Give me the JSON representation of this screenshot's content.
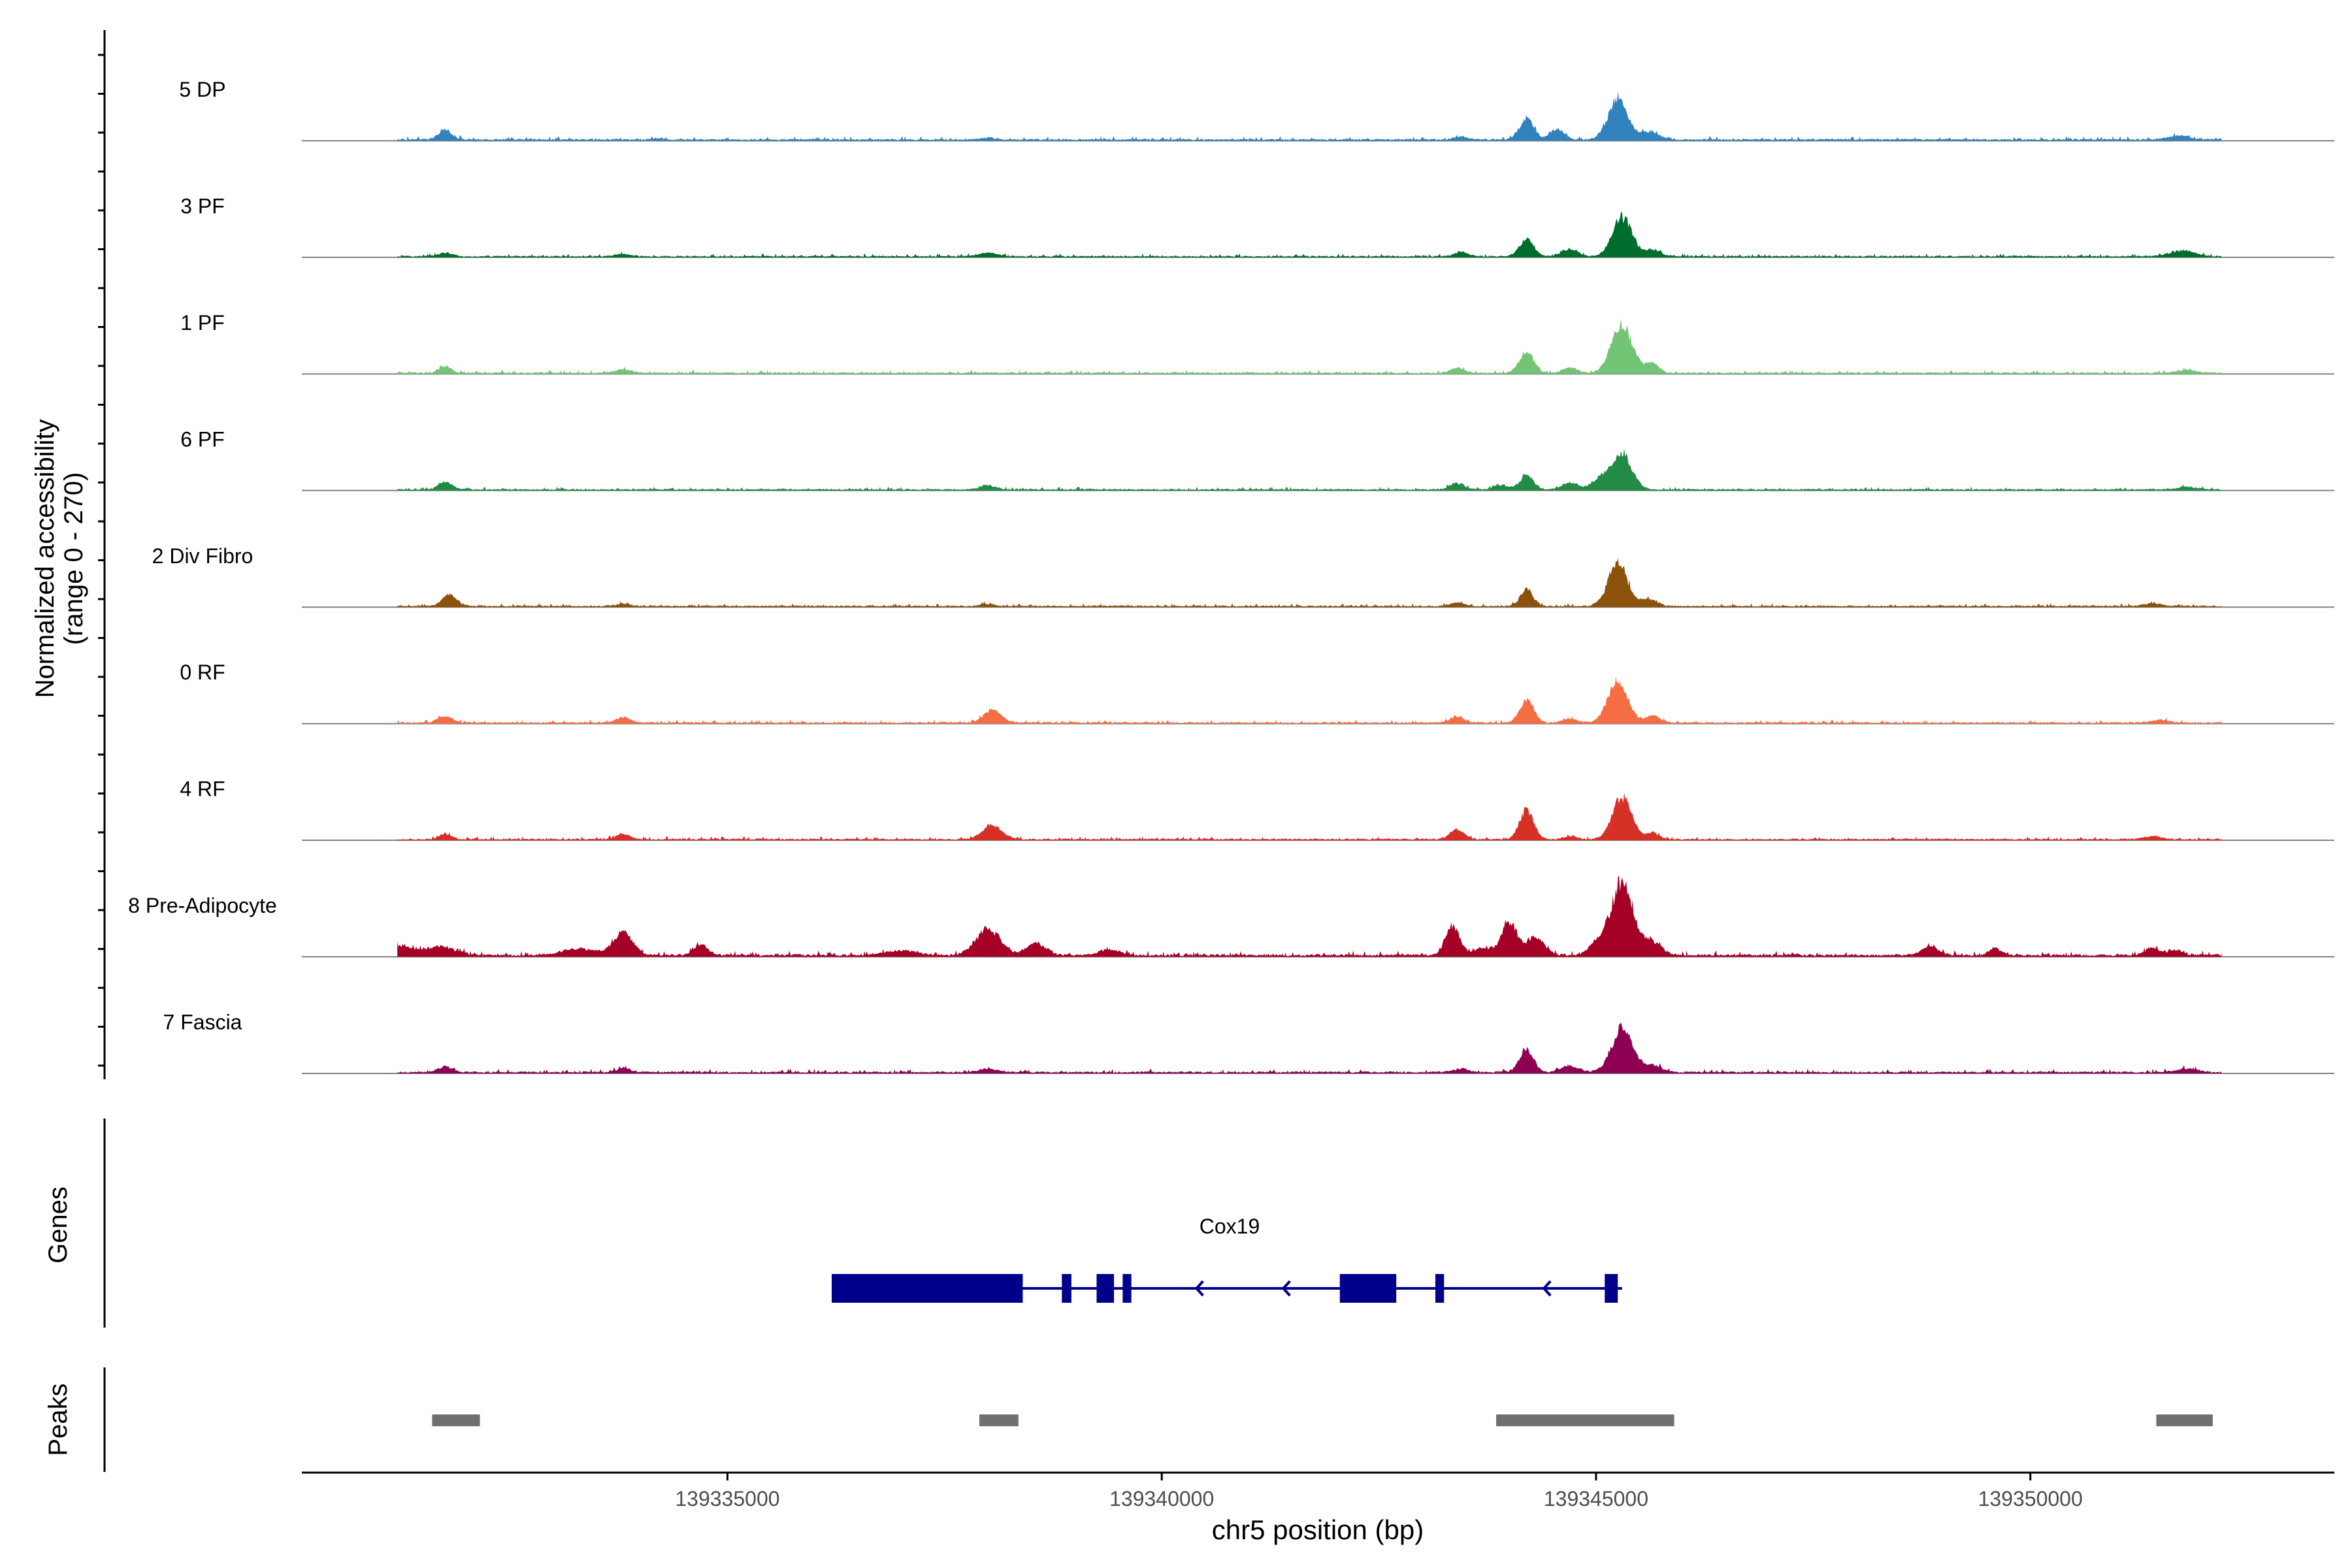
{
  "chart_data": [
    {
      "type": "area",
      "title": "",
      "ylabel_line1": "Normalized accessibility",
      "ylabel_line2": "(range 0 - 270)",
      "ylim": [
        0,
        270
      ],
      "xlabel": "chr5 position (bp)",
      "xlim": [
        139330100,
        139353500
      ],
      "x_ticks": [
        139335000,
        139340000,
        139345000,
        139350000
      ],
      "x_tick_labels": [
        "139335000",
        "139340000",
        "139345000",
        "139350000"
      ],
      "peak_shape_note": "Each track is summarized as a baseline level plus Gaussian-shaped peaks: [center_bp, height (0-270 scale), width_bp]",
      "series": [
        {
          "name": "5 DP",
          "color": "#3182bd",
          "baseline": 6,
          "peaks": [
            [
              139331750,
              24,
              80
            ],
            [
              139334200,
              4,
              60
            ],
            [
              139338000,
              5,
              80
            ],
            [
              139343450,
              8,
              80
            ],
            [
              139344200,
              60,
              80
            ],
            [
              139344550,
              28,
              80
            ],
            [
              139345250,
              110,
              110
            ],
            [
              139345600,
              20,
              120
            ],
            [
              139351700,
              10,
              120
            ]
          ]
        },
        {
          "name": "3 PF",
          "color": "#006d2c",
          "baseline": 5,
          "peaks": [
            [
              139331750,
              10,
              80
            ],
            [
              139333800,
              6,
              80
            ],
            [
              139338000,
              10,
              100
            ],
            [
              139343450,
              12,
              80
            ],
            [
              139344200,
              48,
              80
            ],
            [
              139344700,
              20,
              90
            ],
            [
              139345300,
              108,
              110
            ],
            [
              139345650,
              18,
              90
            ],
            [
              139351750,
              16,
              140
            ]
          ]
        },
        {
          "name": "1 PF",
          "color": "#74c476",
          "baseline": 5,
          "peaks": [
            [
              139331750,
              18,
              70
            ],
            [
              139333800,
              9,
              90
            ],
            [
              139343400,
              14,
              80
            ],
            [
              139344200,
              60,
              80
            ],
            [
              139344700,
              15,
              80
            ],
            [
              139345300,
              130,
              120
            ],
            [
              139345650,
              28,
              70
            ],
            [
              139351800,
              7,
              120
            ]
          ]
        },
        {
          "name": "6 PF",
          "color": "#238b45",
          "baseline": 5,
          "peaks": [
            [
              139331750,
              20,
              80
            ],
            [
              139338000,
              12,
              80
            ],
            [
              139343400,
              18,
              80
            ],
            [
              139343900,
              12,
              80
            ],
            [
              139344200,
              38,
              80
            ],
            [
              139344700,
              18,
              90
            ],
            [
              139345050,
              30,
              100
            ],
            [
              139345300,
              100,
              110
            ],
            [
              139351800,
              7,
              120
            ]
          ]
        },
        {
          "name": "2 Div Fibro",
          "color": "#8c510a",
          "baseline": 5,
          "peaks": [
            [
              139331800,
              32,
              80
            ],
            [
              139333800,
              6,
              80
            ],
            [
              139338000,
              6,
              80
            ],
            [
              139343400,
              10,
              80
            ],
            [
              139344200,
              48,
              70
            ],
            [
              139345250,
              118,
              110
            ],
            [
              139345600,
              18,
              100
            ],
            [
              139351400,
              8,
              100
            ]
          ]
        },
        {
          "name": "0 RF",
          "color": "#f46d43",
          "baseline": 5,
          "peaks": [
            [
              139331750,
              18,
              80
            ],
            [
              139333800,
              14,
              80
            ],
            [
              139338050,
              36,
              100
            ],
            [
              139343400,
              16,
              80
            ],
            [
              139344200,
              62,
              80
            ],
            [
              139344700,
              10,
              80
            ],
            [
              139345250,
              118,
              110
            ],
            [
              139345650,
              20,
              80
            ],
            [
              139351500,
              8,
              100
            ]
          ]
        },
        {
          "name": "4 RF",
          "color": "#d73027",
          "baseline": 5,
          "peaks": [
            [
              139331750,
              14,
              70
            ],
            [
              139333800,
              14,
              80
            ],
            [
              139338050,
              40,
              110
            ],
            [
              139343400,
              26,
              80
            ],
            [
              139344200,
              80,
              80
            ],
            [
              139344700,
              8,
              80
            ],
            [
              139345300,
              118,
              110
            ],
            [
              139345650,
              16,
              80
            ],
            [
              139351400,
              9,
              100
            ]
          ]
        },
        {
          "name": "8 Pre-Adipocyte",
          "color": "#a50026",
          "baseline": 8,
          "peaks": [
            [
              139331200,
              28,
              160
            ],
            [
              139331700,
              24,
              160
            ],
            [
              139333300,
              18,
              200
            ],
            [
              139333800,
              62,
              110
            ],
            [
              139334700,
              28,
              80
            ],
            [
              139337000,
              12,
              200
            ],
            [
              139338000,
              72,
              140
            ],
            [
              139338550,
              32,
              110
            ],
            [
              139339400,
              16,
              120
            ],
            [
              139343350,
              80,
              80
            ],
            [
              139343700,
              20,
              100
            ],
            [
              139344000,
              90,
              90
            ],
            [
              139344300,
              50,
              100
            ],
            [
              139345000,
              30,
              90
            ],
            [
              139345300,
              200,
              130
            ],
            [
              139345650,
              36,
              100
            ],
            [
              139348850,
              24,
              100
            ],
            [
              139349600,
              18,
              70
            ],
            [
              139351400,
              20,
              80
            ],
            [
              139351650,
              12,
              100
            ]
          ]
        },
        {
          "name": "7 Fascia",
          "color": "#8e0152",
          "baseline": 6,
          "peaks": [
            [
              139331750,
              16,
              80
            ],
            [
              139333800,
              12,
              80
            ],
            [
              139338000,
              10,
              100
            ],
            [
              139343450,
              10,
              80
            ],
            [
              139344200,
              62,
              80
            ],
            [
              139344700,
              18,
              100
            ],
            [
              139345300,
              122,
              120
            ],
            [
              139345650,
              18,
              100
            ],
            [
              139351800,
              10,
              120
            ]
          ]
        }
      ]
    },
    {
      "type": "gene_track",
      "track_label": "Genes",
      "gene_name": "Cox19",
      "color": "#00008b",
      "strand": "-",
      "span": [
        139336200,
        139345300
      ],
      "exons": [
        [
          139336200,
          139338400
        ],
        [
          139338850,
          139338960
        ],
        [
          139339250,
          139339450
        ],
        [
          139339550,
          139339650
        ],
        [
          139342050,
          139342700
        ],
        [
          139343150,
          139343250
        ],
        [
          139345100,
          139345250
        ]
      ],
      "direction_arrows_at": [
        139340400,
        139341400,
        139344400
      ]
    },
    {
      "type": "interval_track",
      "track_label": "Peaks",
      "color": "#707070",
      "intervals": [
        [
          139331600,
          139332150
        ],
        [
          139337900,
          139338350
        ],
        [
          139343850,
          139345900
        ],
        [
          139351450,
          139352100
        ]
      ]
    }
  ]
}
